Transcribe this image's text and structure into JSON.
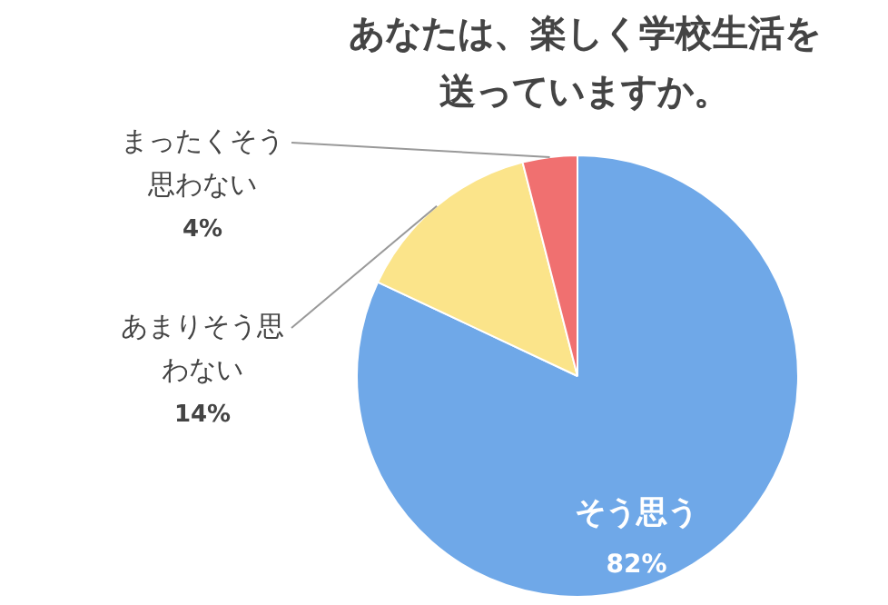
{
  "chart_data": {
    "type": "pie",
    "title": "あなたは、楽しく学校生活を送っていますか。",
    "categories": [
      "そう思う",
      "あまりそう思わない",
      "まったくそう思わない"
    ],
    "values": [
      82,
      14,
      4
    ],
    "colors": [
      "#6fa8e8",
      "#fbe48a",
      "#f07070"
    ],
    "value_labels": [
      "82%",
      "14%",
      "4%"
    ],
    "legend": false
  }
}
